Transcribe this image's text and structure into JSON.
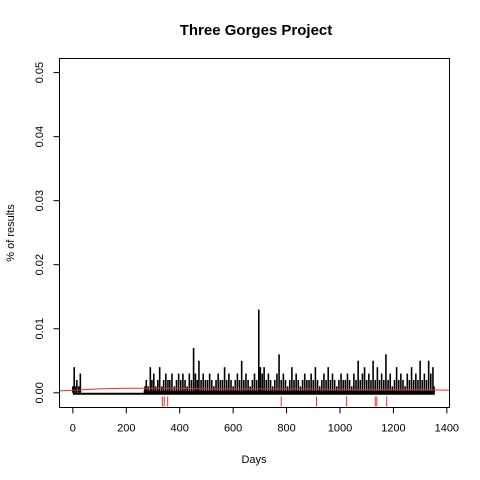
{
  "chart_data": {
    "type": "bar",
    "title": "Three Gorges Project",
    "xlabel": "Days",
    "ylabel": "% of results",
    "xlim": [
      -50,
      1410
    ],
    "ylim": [
      -0.0023,
      0.0522
    ],
    "x_ticks": [
      0,
      200,
      400,
      600,
      800,
      1000,
      1200,
      1400
    ],
    "x_tick_labels": [
      "0",
      "200",
      "400",
      "600",
      "800",
      "1000",
      "1200",
      "1400"
    ],
    "y_ticks": [
      0,
      0.01,
      0.02,
      0.03,
      0.04,
      0.05
    ],
    "y_tick_labels": [
      "0.00",
      "0.01",
      "0.02",
      "0.03",
      "0.04",
      "0.05"
    ],
    "grid": false,
    "legend": "none",
    "series": [
      {
        "style": "histogram-spikes",
        "color": "#000000",
        "points": [
          [
            0,
            0.001
          ],
          [
            5,
            0.004
          ],
          [
            10,
            0.001
          ],
          [
            15,
            0.002
          ],
          [
            22,
            0.001
          ],
          [
            28,
            0.003
          ],
          [
            35,
            0.0
          ],
          [
            270,
            0.001
          ],
          [
            275,
            0.002
          ],
          [
            282,
            0.001
          ],
          [
            290,
            0.004
          ],
          [
            296,
            0.002
          ],
          [
            303,
            0.003
          ],
          [
            310,
            0.001
          ],
          [
            318,
            0.002
          ],
          [
            325,
            0.004
          ],
          [
            333,
            0.001
          ],
          [
            340,
            0.002
          ],
          [
            348,
            0.003
          ],
          [
            356,
            0.002
          ],
          [
            363,
            0.002
          ],
          [
            371,
            0.003
          ],
          [
            380,
            0.001
          ],
          [
            388,
            0.002
          ],
          [
            396,
            0.003
          ],
          [
            404,
            0.002
          ],
          [
            412,
            0.003
          ],
          [
            420,
            0.002
          ],
          [
            428,
            0.001
          ],
          [
            436,
            0.003
          ],
          [
            444,
            0.002
          ],
          [
            452,
            0.007
          ],
          [
            459,
            0.003
          ],
          [
            466,
            0.002
          ],
          [
            472,
            0.005
          ],
          [
            480,
            0.002
          ],
          [
            488,
            0.003
          ],
          [
            496,
            0.002
          ],
          [
            504,
            0.002
          ],
          [
            512,
            0.003
          ],
          [
            520,
            0.002
          ],
          [
            528,
            0.001
          ],
          [
            536,
            0.002
          ],
          [
            544,
            0.003
          ],
          [
            552,
            0.002
          ],
          [
            560,
            0.002
          ],
          [
            568,
            0.004
          ],
          [
            576,
            0.002
          ],
          [
            584,
            0.003
          ],
          [
            592,
            0.002
          ],
          [
            600,
            0.001
          ],
          [
            608,
            0.002
          ],
          [
            616,
            0.003
          ],
          [
            624,
            0.002
          ],
          [
            632,
            0.005
          ],
          [
            640,
            0.002
          ],
          [
            648,
            0.003
          ],
          [
            656,
            0.002
          ],
          [
            664,
            0.001
          ],
          [
            672,
            0.002
          ],
          [
            680,
            0.003
          ],
          [
            688,
            0.002
          ],
          [
            696,
            0.013
          ],
          [
            702,
            0.004
          ],
          [
            709,
            0.003
          ],
          [
            716,
            0.004
          ],
          [
            724,
            0.002
          ],
          [
            732,
            0.003
          ],
          [
            740,
            0.002
          ],
          [
            748,
            0.001
          ],
          [
            756,
            0.002
          ],
          [
            764,
            0.003
          ],
          [
            772,
            0.006
          ],
          [
            780,
            0.002
          ],
          [
            788,
            0.003
          ],
          [
            796,
            0.002
          ],
          [
            804,
            0.001
          ],
          [
            812,
            0.002
          ],
          [
            820,
            0.004
          ],
          [
            828,
            0.002
          ],
          [
            836,
            0.003
          ],
          [
            844,
            0.002
          ],
          [
            852,
            0.001
          ],
          [
            860,
            0.002
          ],
          [
            868,
            0.003
          ],
          [
            876,
            0.002
          ],
          [
            884,
            0.002
          ],
          [
            892,
            0.003
          ],
          [
            900,
            0.002
          ],
          [
            908,
            0.004
          ],
          [
            916,
            0.002
          ],
          [
            924,
            0.001
          ],
          [
            932,
            0.002
          ],
          [
            940,
            0.003
          ],
          [
            948,
            0.002
          ],
          [
            956,
            0.004
          ],
          [
            964,
            0.002
          ],
          [
            972,
            0.003
          ],
          [
            980,
            0.002
          ],
          [
            988,
            0.001
          ],
          [
            996,
            0.002
          ],
          [
            1004,
            0.003
          ],
          [
            1012,
            0.002
          ],
          [
            1020,
            0.002
          ],
          [
            1028,
            0.003
          ],
          [
            1036,
            0.002
          ],
          [
            1044,
            0.001
          ],
          [
            1052,
            0.003
          ],
          [
            1060,
            0.002
          ],
          [
            1068,
            0.005
          ],
          [
            1076,
            0.002
          ],
          [
            1084,
            0.003
          ],
          [
            1092,
            0.004
          ],
          [
            1100,
            0.002
          ],
          [
            1108,
            0.003
          ],
          [
            1116,
            0.002
          ],
          [
            1124,
            0.005
          ],
          [
            1132,
            0.002
          ],
          [
            1140,
            0.004
          ],
          [
            1148,
            0.002
          ],
          [
            1156,
            0.003
          ],
          [
            1164,
            0.002
          ],
          [
            1172,
            0.006
          ],
          [
            1180,
            0.002
          ],
          [
            1188,
            0.003
          ],
          [
            1196,
            0.001
          ],
          [
            1204,
            0.002
          ],
          [
            1212,
            0.004
          ],
          [
            1220,
            0.002
          ],
          [
            1228,
            0.003
          ],
          [
            1236,
            0.002
          ],
          [
            1244,
            0.001
          ],
          [
            1252,
            0.003
          ],
          [
            1260,
            0.002
          ],
          [
            1268,
            0.004
          ],
          [
            1276,
            0.002
          ],
          [
            1284,
            0.003
          ],
          [
            1292,
            0.002
          ],
          [
            1300,
            0.005
          ],
          [
            1308,
            0.002
          ],
          [
            1316,
            0.003
          ],
          [
            1324,
            0.002
          ],
          [
            1332,
            0.005
          ],
          [
            1340,
            0.003
          ],
          [
            1348,
            0.004
          ],
          [
            1352,
            0.001
          ]
        ]
      },
      {
        "style": "smoothed-line",
        "color": "#e03030",
        "points": [
          [
            -50,
            0.0003
          ],
          [
            0,
            0.0004
          ],
          [
            100,
            0.0006
          ],
          [
            200,
            0.0007
          ],
          [
            300,
            0.0007
          ],
          [
            400,
            0.0007
          ],
          [
            500,
            0.0006
          ],
          [
            600,
            0.0006
          ],
          [
            700,
            0.0006
          ],
          [
            800,
            0.0006
          ],
          [
            900,
            0.0006
          ],
          [
            1000,
            0.0005
          ],
          [
            1100,
            0.0005
          ],
          [
            1200,
            0.0005
          ],
          [
            1300,
            0.0005
          ],
          [
            1410,
            0.0004
          ]
        ]
      }
    ],
    "rug": {
      "color": "#e03030",
      "x": [
        335,
        342,
        355,
        780,
        912,
        1025,
        1132,
        1138,
        1175
      ]
    }
  }
}
